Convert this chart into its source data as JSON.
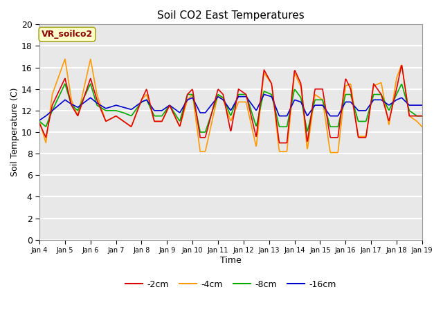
{
  "title": "Soil CO2 East Temperatures",
  "xlabel": "Time",
  "ylabel": "Soil Temperature (C)",
  "legend_label": "VR_soilco2",
  "series_labels": [
    "-2cm",
    "-4cm",
    "-8cm",
    "-16cm"
  ],
  "series_colors": [
    "#dd0000",
    "#ff9900",
    "#00aa00",
    "#0000cc"
  ],
  "ylim": [
    0,
    20
  ],
  "yticks": [
    0,
    2,
    4,
    6,
    8,
    10,
    12,
    14,
    16,
    18,
    20
  ],
  "xtick_labels": [
    "Jan 4",
    "Jan 5",
    "Jan 6",
    "Jan 7",
    "Jan 8",
    "Jan 9",
    "Jan 10",
    "Jan 11",
    "Jan 12",
    "Jan 13",
    "Jan 14",
    "Jan 15",
    "Jan 16",
    "Jan 17",
    "Jan 18",
    "Jan 19"
  ],
  "xtick_labels_display": [
    "Jan 4",
    "Jan 5",
    "Jan 6",
    "Jan 7",
    "Jan 8",
    "Jan 9",
    "Jan 10",
    "Jan 11",
    "Jan 12",
    "Jan 13",
    "Jan 14",
    "Jan 15",
    "Jan 16",
    "Jan 17",
    "Jan 18",
    "Jan 19"
  ],
  "plot_bg_color": "#e8e8e8",
  "fig_bg_color": "#ffffff",
  "grid_color": "#ffffff",
  "label_box_color": "#ffffcc",
  "label_box_edge": "#999900",
  "label_text_color": "#880000",
  "knots_t": [
    0,
    0.25,
    0.5,
    1.0,
    1.25,
    1.5,
    2.0,
    2.25,
    2.6,
    3.0,
    3.3,
    3.6,
    4.0,
    4.2,
    4.5,
    4.8,
    5.1,
    5.5,
    5.8,
    6.0,
    6.3,
    6.5,
    7.0,
    7.2,
    7.5,
    7.8,
    8.1,
    8.5,
    8.8,
    9.1,
    9.4,
    9.7,
    10.0,
    10.25,
    10.5,
    10.8,
    11.1,
    11.4,
    11.7,
    12.0,
    12.2,
    12.5,
    12.8,
    13.1,
    13.4,
    13.7,
    14.0,
    14.2,
    14.5,
    14.8,
    15.0
  ],
  "knots_v_4cm": [
    11.0,
    9.0,
    13.5,
    16.8,
    13.0,
    11.5,
    16.8,
    13.5,
    11.0,
    11.5,
    11.0,
    10.5,
    13.0,
    13.5,
    11.0,
    11.0,
    12.5,
    10.5,
    13.0,
    13.5,
    8.2,
    8.2,
    13.5,
    13.0,
    11.0,
    12.8,
    12.8,
    8.6,
    15.5,
    14.5,
    8.2,
    8.2,
    15.5,
    14.2,
    8.3,
    13.5,
    13.0,
    8.1,
    8.1,
    14.3,
    14.5,
    9.6,
    9.6,
    14.3,
    14.6,
    10.6,
    15.0,
    16.3,
    11.5,
    11.0,
    10.5
  ],
  "knots_v_2cm": [
    10.8,
    9.5,
    12.5,
    15.0,
    12.5,
    11.5,
    15.0,
    13.0,
    11.0,
    11.5,
    11.0,
    10.5,
    13.0,
    14.0,
    11.0,
    11.0,
    12.5,
    10.5,
    13.5,
    14.0,
    9.5,
    9.5,
    14.0,
    13.5,
    10.0,
    14.0,
    13.5,
    9.5,
    15.8,
    14.5,
    9.0,
    9.0,
    15.8,
    14.5,
    9.0,
    14.0,
    14.0,
    9.5,
    9.5,
    15.0,
    14.0,
    9.5,
    9.5,
    14.5,
    13.5,
    11.0,
    14.0,
    16.3,
    11.5,
    11.5,
    11.5
  ],
  "knots_v_8cm": [
    11.0,
    10.5,
    12.0,
    14.5,
    12.5,
    12.0,
    14.5,
    12.5,
    12.0,
    12.0,
    11.8,
    11.5,
    12.8,
    13.0,
    11.5,
    11.5,
    12.5,
    11.0,
    13.5,
    13.5,
    10.0,
    10.0,
    13.5,
    13.2,
    11.5,
    13.5,
    13.5,
    10.5,
    13.8,
    13.5,
    10.5,
    10.5,
    14.0,
    13.2,
    10.0,
    13.0,
    13.0,
    10.5,
    10.5,
    13.5,
    13.5,
    11.0,
    11.0,
    13.5,
    13.5,
    12.0,
    13.5,
    14.5,
    12.0,
    11.5,
    11.5
  ],
  "knots_v_16cm": [
    11.1,
    11.5,
    12.0,
    13.0,
    12.6,
    12.3,
    13.2,
    12.7,
    12.2,
    12.5,
    12.3,
    12.1,
    12.8,
    13.0,
    12.0,
    12.0,
    12.5,
    11.8,
    13.0,
    13.2,
    11.8,
    11.8,
    13.3,
    13.0,
    12.0,
    13.3,
    13.3,
    12.0,
    13.5,
    13.3,
    11.5,
    11.5,
    13.0,
    12.8,
    11.5,
    12.5,
    12.5,
    11.5,
    11.5,
    12.8,
    12.8,
    12.0,
    12.0,
    13.0,
    13.0,
    12.5,
    13.0,
    13.2,
    12.5,
    12.5,
    12.5
  ]
}
